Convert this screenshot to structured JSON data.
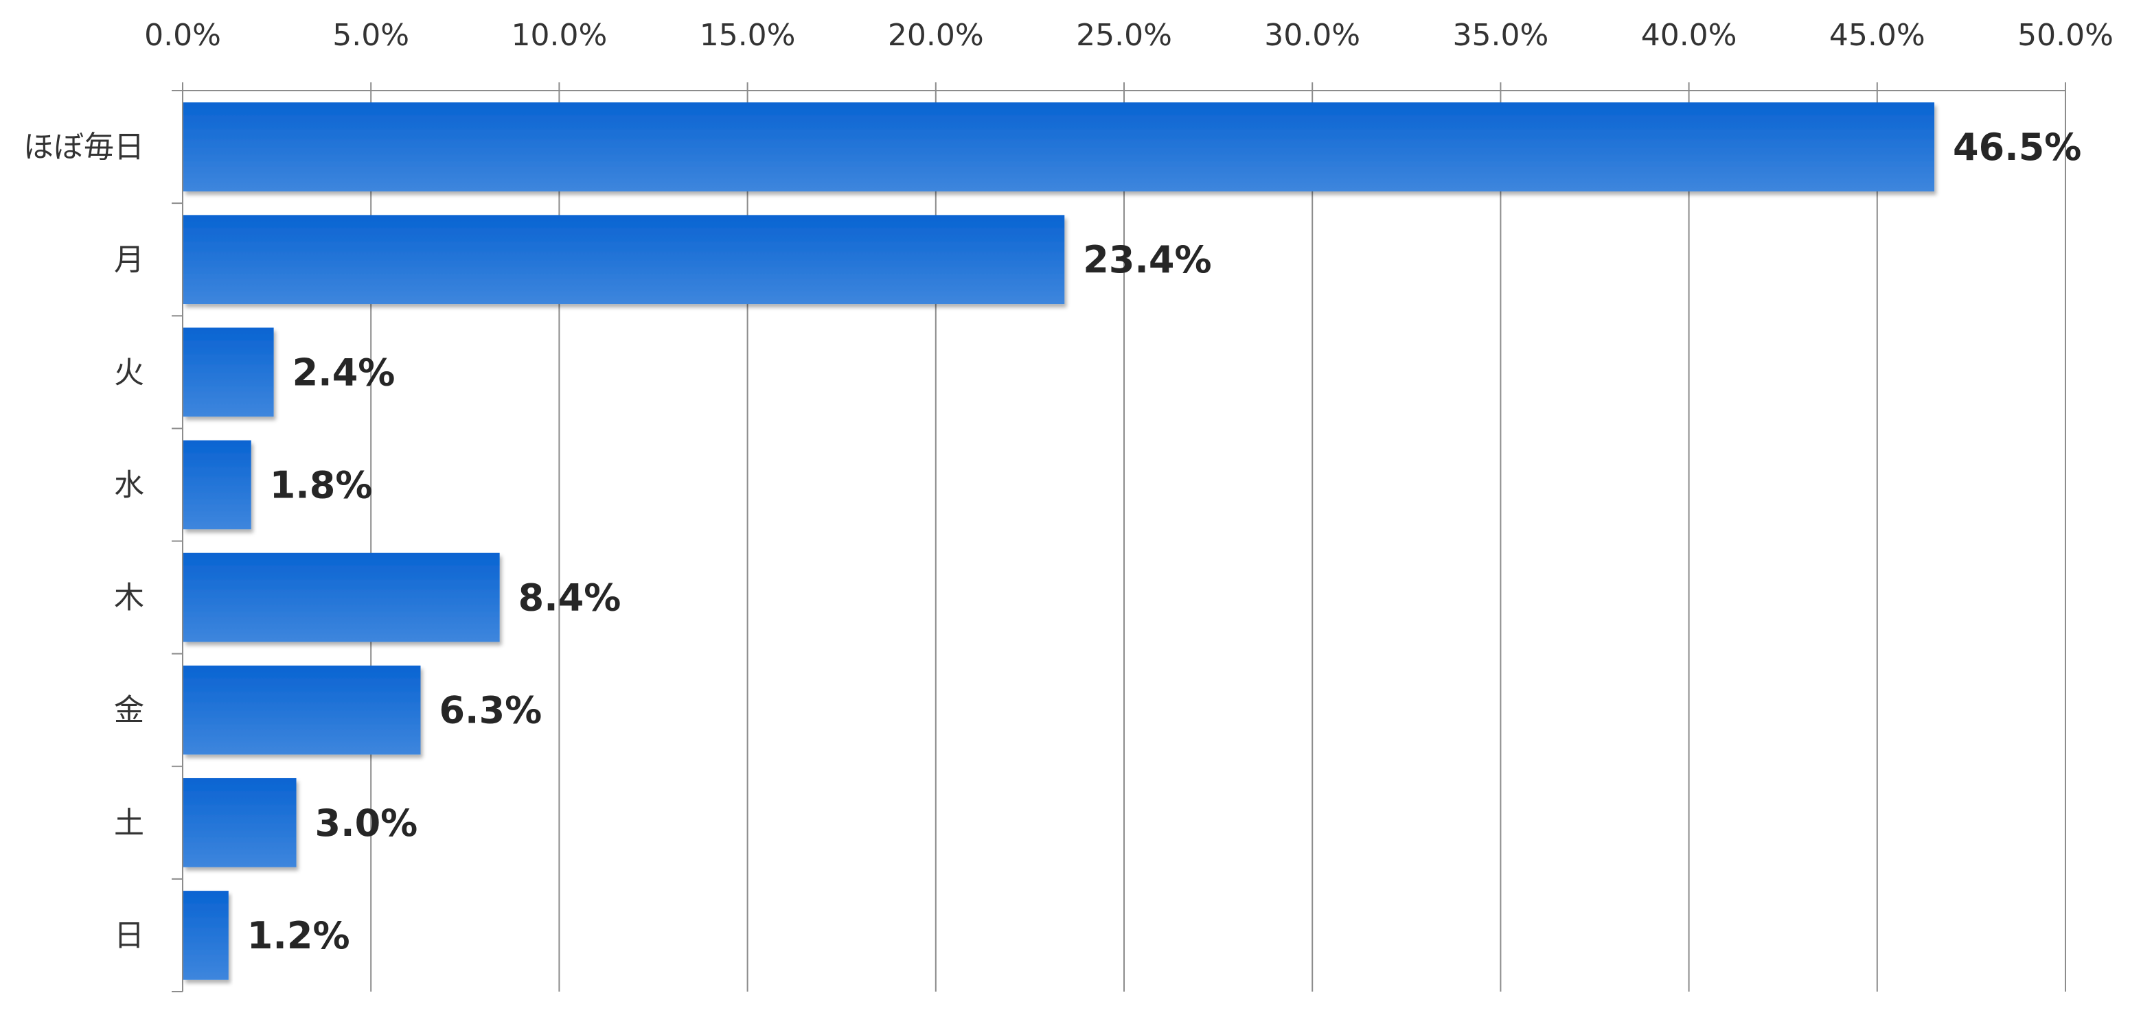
{
  "chart_data": {
    "type": "bar",
    "orientation": "horizontal",
    "categories": [
      "ほぼ毎日",
      "月",
      "火",
      "水",
      "木",
      "金",
      "土",
      "日"
    ],
    "values": [
      46.5,
      23.4,
      2.4,
      1.8,
      8.4,
      6.3,
      3.0,
      1.2
    ],
    "data_labels": [
      "46.5%",
      "23.4%",
      "2.4%",
      "1.8%",
      "8.4%",
      "6.3%",
      "3.0%",
      "1.2%"
    ],
    "x_ticks": [
      "0.0%",
      "5.0%",
      "10.0%",
      "15.0%",
      "20.0%",
      "25.0%",
      "30.0%",
      "35.0%",
      "40.0%",
      "45.0%",
      "50.0%"
    ],
    "xlim": [
      0,
      50
    ],
    "x_axis_position": "top",
    "grid": true,
    "legend": "none",
    "title": "",
    "xlabel": "",
    "ylabel": "",
    "colors": {
      "bar_top": "#0A64D2",
      "bar_bottom": "#3E86DD",
      "grid": "#8C8C8C",
      "text": "#262626"
    }
  }
}
